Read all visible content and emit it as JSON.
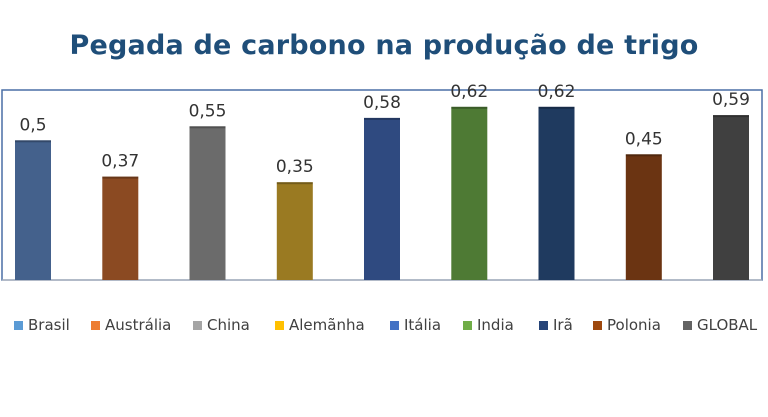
{
  "chart_data": {
    "type": "bar",
    "title": "Pegada de carbono na produção de trigo",
    "categories": [
      "Brasil",
      "Austrália",
      "China",
      "Alemãnha",
      "Itália",
      "India",
      "Irã",
      "Polonia",
      "GLOBAL"
    ],
    "values": [
      0.5,
      0.37,
      0.55,
      0.35,
      0.58,
      0.62,
      0.62,
      0.45,
      0.59
    ],
    "data_labels": [
      "0,5",
      "0,37",
      "0,55",
      "0,35",
      "0,58",
      "0,62",
      "0,62",
      "0,45",
      "0,59"
    ],
    "bar_colors": [
      "#44618c",
      "#8b4a22",
      "#6b6b6b",
      "#9a7a22",
      "#2f4a80",
      "#4e7a34",
      "#1f3a5f",
      "#6b3412",
      "#404040"
    ],
    "legend_colors": [
      "#5b9bd5",
      "#ed7d31",
      "#a5a5a5",
      "#ffc000",
      "#4472c4",
      "#70ad47",
      "#264478",
      "#9e480e",
      "#636363"
    ],
    "xlabel": "",
    "ylabel": "",
    "ylim": [
      0,
      0.68
    ],
    "grid": false,
    "legend_position": "bottom"
  }
}
